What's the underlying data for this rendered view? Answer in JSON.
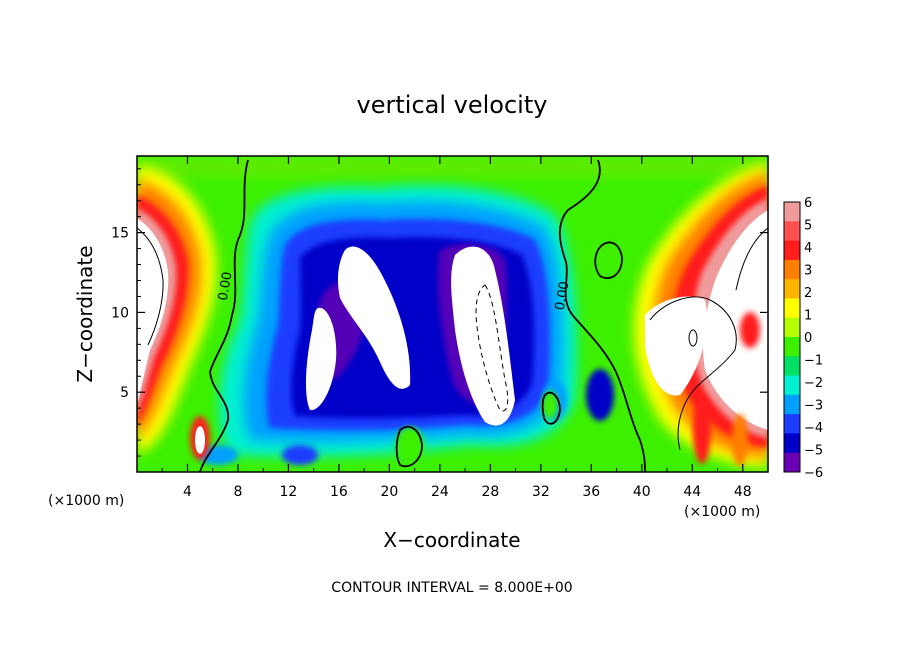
{
  "chart_data": {
    "type": "heatmap",
    "title": "vertical velocity",
    "xlabel": "X−coordinate",
    "ylabel": "Z−coordinate",
    "x_unit_left": "(×1000 m)",
    "x_unit_right": "(×1000 m)",
    "footer": "CONTOUR INTERVAL = 8.000E+00",
    "xlim": [
      0,
      50
    ],
    "ylim": [
      0,
      19.8
    ],
    "x_ticks": [
      4,
      8,
      12,
      16,
      20,
      24,
      28,
      32,
      36,
      40,
      44,
      48
    ],
    "y_ticks": [
      5,
      10,
      15
    ],
    "contour_labels": [
      {
        "text": "0.00",
        "x": 7.3,
        "y": 11.6
      },
      {
        "text": "0.00",
        "x": 34.0,
        "y": 11.0
      }
    ],
    "colorbar": {
      "ticks": [
        "6",
        "5",
        "4",
        "3",
        "2",
        "1",
        "0",
        "−1",
        "−2",
        "−3",
        "−4",
        "−5",
        "−6"
      ],
      "colors": [
        "#f09b9b",
        "#ff5050",
        "#ff1e1e",
        "#ff7f00",
        "#ffb400",
        "#ffff00",
        "#b4ff00",
        "#3cf000",
        "#00e064",
        "#00f0d2",
        "#00a0ff",
        "#1e3cff",
        "#0000c8",
        "#6a00b4"
      ]
    },
    "features": [
      {
        "name": "left-updraft",
        "kind": "positive",
        "x": 2.0,
        "y": 10.5,
        "rx": 3.2,
        "ry": 7.0
      },
      {
        "name": "right-updraft",
        "kind": "positive",
        "x": 47.5,
        "y": 9.0,
        "rx": 5.0,
        "ry": 7.0
      },
      {
        "name": "downdraft-region",
        "kind": "negative",
        "x": 24.0,
        "y": 9.5,
        "rx": 12.0,
        "ry": 6.5
      },
      {
        "name": "core-a",
        "kind": "extreme-negative",
        "x": 14.8,
        "y": 7.5,
        "rx": 1.5,
        "ry": 3.8
      },
      {
        "name": "core-b",
        "kind": "extreme-negative",
        "x": 19.5,
        "y": 11.0,
        "rx": 2.6,
        "ry": 5.0
      },
      {
        "name": "core-c",
        "kind": "extreme-negative",
        "x": 28.0,
        "y": 9.0,
        "rx": 2.8,
        "ry": 6.0
      }
    ]
  }
}
